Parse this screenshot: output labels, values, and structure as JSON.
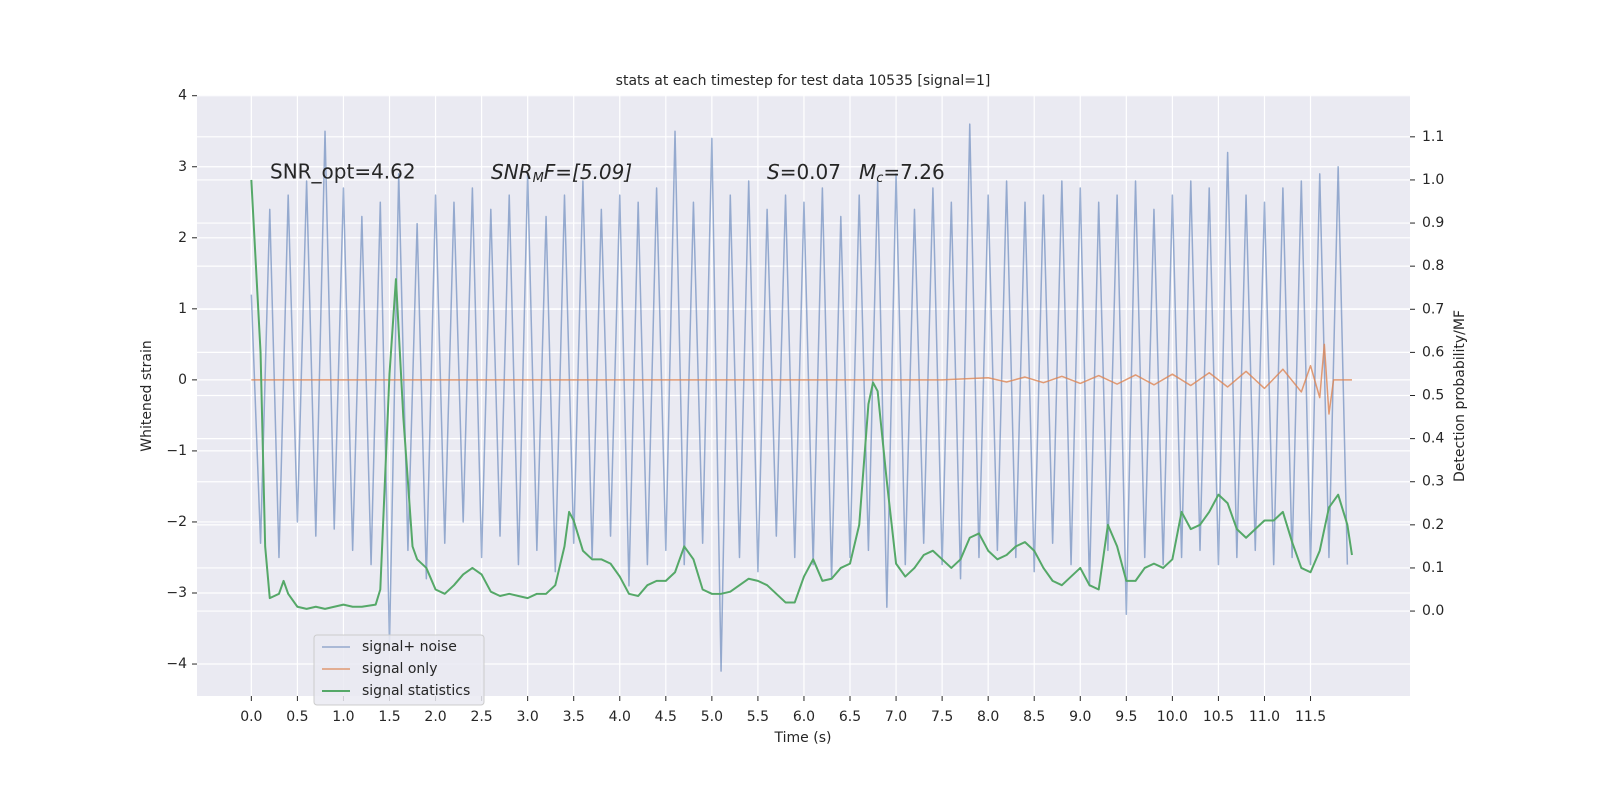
{
  "chart_data": {
    "type": "line",
    "title": "stats at each timestep for test data 10535 [signal=1]",
    "xlabel": "Time (s)",
    "ylabel": "Whitened strain",
    "y2label": "Detection probability/MF",
    "annotations": {
      "snr_opt": "SNR_opt=4.62",
      "snr_mf": [
        "SNR",
        "M",
        "F=[5.09]"
      ],
      "s": [
        "S",
        "=0.07"
      ],
      "mc": [
        "M",
        "c",
        "=7.26"
      ]
    },
    "xlim": [
      -0.59,
      12.58
    ],
    "ylim": [
      -4.45,
      4.01
    ],
    "y2lim": [
      -0.197,
      1.197
    ],
    "xticks": [
      {
        "value": 0,
        "label": "0.0"
      },
      0.5,
      {
        "value": 1,
        "label": "1.0"
      },
      1.5,
      {
        "value": 2,
        "label": "2.0"
      },
      2.5,
      {
        "value": 3,
        "label": "3.0"
      },
      3.5,
      {
        "value": 4,
        "label": "4.0"
      },
      4.5,
      {
        "value": 5,
        "label": "5.0"
      },
      5.5,
      {
        "value": 6,
        "label": "6.0"
      },
      6.5,
      {
        "value": 7,
        "label": "7.0"
      },
      7.5,
      {
        "value": 8,
        "label": "8.0"
      },
      8.5,
      {
        "value": 9,
        "label": "9.0"
      },
      9.5,
      {
        "value": 10,
        "label": "10.0"
      },
      10.5,
      {
        "value": 11,
        "label": "11.0"
      },
      11.5
    ],
    "yticks": [
      {
        "value": -4,
        "label": "−4"
      },
      {
        "value": -3,
        "label": "−3"
      },
      {
        "value": -2,
        "label": "−2"
      },
      {
        "value": -1,
        "label": "−1"
      },
      0,
      1,
      2,
      3,
      4
    ],
    "y2ticks": [
      {
        "value": 0,
        "label": "0.0"
      },
      0.1,
      0.2,
      0.3,
      0.4,
      0.5,
      0.6,
      0.7,
      0.8,
      0.9,
      {
        "value": 1,
        "label": "1.0"
      },
      1.1
    ],
    "grid": true,
    "legend": "lower left",
    "series": [
      {
        "name": "signal+ noise",
        "color": "#4c72b0",
        "opacity": 0.55,
        "x": [
          0,
          0.1,
          0.2,
          0.3,
          0.4,
          0.5,
          0.6,
          0.7,
          0.8,
          0.9,
          1,
          1.1,
          1.2,
          1.3,
          1.4,
          1.5,
          1.6,
          1.7,
          1.8,
          1.9,
          2,
          2.1,
          2.2,
          2.3,
          2.4,
          2.5,
          2.6,
          2.7,
          2.8,
          2.9,
          3,
          3.1,
          3.2,
          3.3,
          3.4,
          3.5,
          3.6,
          3.7,
          3.8,
          3.9,
          4,
          4.1,
          4.2,
          4.3,
          4.4,
          4.5,
          4.6,
          4.7,
          4.8,
          4.9,
          5,
          5.1,
          5.2,
          5.3,
          5.4,
          5.5,
          5.6,
          5.7,
          5.8,
          5.9,
          6,
          6.1,
          6.2,
          6.3,
          6.4,
          6.5,
          6.6,
          6.7,
          6.8,
          6.9,
          7,
          7.1,
          7.2,
          7.3,
          7.4,
          7.5,
          7.6,
          7.7,
          7.8,
          7.9,
          8,
          8.1,
          8.2,
          8.3,
          8.4,
          8.5,
          8.6,
          8.7,
          8.8,
          8.9,
          9,
          9.1,
          9.2,
          9.3,
          9.4,
          9.5,
          9.6,
          9.7,
          9.8,
          9.9,
          10,
          10.1,
          10.2,
          10.3,
          10.4,
          10.5,
          10.6,
          10.7,
          10.8,
          10.9,
          11,
          11.1,
          11.2,
          11.3,
          11.4,
          11.5,
          11.6,
          11.7,
          11.8,
          11.9
        ],
        "values": [
          1.2,
          -2.3,
          2.4,
          -2.5,
          2.6,
          -2.0,
          2.8,
          -2.2,
          3.5,
          -2.1,
          2.7,
          -2.4,
          2.3,
          -2.6,
          2.5,
          -3.7,
          2.9,
          -2.4,
          2.2,
          -2.8,
          2.6,
          -2.3,
          2.5,
          -2.0,
          2.7,
          -2.5,
          2.4,
          -2.2,
          2.6,
          -2.6,
          2.9,
          -2.4,
          2.3,
          -2.7,
          2.6,
          -2.3,
          2.8,
          -2.5,
          2.4,
          -2.2,
          2.6,
          -2.9,
          2.5,
          -2.6,
          2.7,
          -2.4,
          3.5,
          -2.6,
          2.5,
          -2.3,
          3.4,
          -4.1,
          2.6,
          -2.5,
          2.8,
          -2.7,
          2.4,
          -2.2,
          2.6,
          -2.5,
          2.5,
          -2.6,
          2.7,
          -2.8,
          2.3,
          -2.5,
          2.6,
          -2.4,
          2.8,
          -3.2,
          2.9,
          -2.6,
          2.4,
          -2.3,
          2.7,
          -2.6,
          2.5,
          -2.8,
          3.6,
          -2.5,
          2.6,
          -2.4,
          2.8,
          -2.5,
          2.5,
          -2.7,
          2.6,
          -2.3,
          2.8,
          -2.6,
          2.7,
          -2.9,
          2.5,
          -2.4,
          2.6,
          -3.3,
          2.8,
          -2.5,
          2.4,
          -2.6,
          2.6,
          -2.5,
          2.8,
          -2.4,
          2.7,
          -2.6,
          3.2,
          -2.5,
          2.6,
          -2.4,
          2.5,
          -2.6,
          2.7,
          -2.5,
          2.8,
          -2.6,
          2.9,
          -2.5,
          3.0,
          -2.6
        ]
      },
      {
        "name": "signal only",
        "color": "#dd8452",
        "opacity": 0.8,
        "x": [
          0,
          7.5,
          8,
          8.2,
          8.4,
          8.6,
          8.8,
          9,
          9.2,
          9.4,
          9.6,
          9.8,
          10,
          10.2,
          10.4,
          10.6,
          10.8,
          11,
          11.2,
          11.4,
          11.5,
          11.6,
          11.65,
          11.7,
          11.75,
          11.95
        ],
        "values": [
          0,
          0,
          0.03,
          -0.03,
          0.04,
          -0.04,
          0.05,
          -0.05,
          0.06,
          -0.06,
          0.07,
          -0.07,
          0.08,
          -0.08,
          0.1,
          -0.1,
          0.12,
          -0.12,
          0.15,
          -0.17,
          0.2,
          -0.25,
          0.5,
          -0.48,
          0,
          0
        ]
      },
      {
        "name": "signal statistics",
        "color": "#55a868",
        "opacity": 1,
        "axis": "y2",
        "x": [
          0,
          0.1,
          0.15,
          0.2,
          0.3,
          0.35,
          0.4,
          0.5,
          0.6,
          0.7,
          0.8,
          0.9,
          1,
          1.1,
          1.2,
          1.35,
          1.4,
          1.5,
          1.57,
          1.65,
          1.75,
          1.8,
          1.9,
          2,
          2.1,
          2.2,
          2.3,
          2.4,
          2.5,
          2.6,
          2.7,
          2.8,
          2.9,
          3,
          3.1,
          3.2,
          3.3,
          3.4,
          3.45,
          3.5,
          3.6,
          3.7,
          3.8,
          3.9,
          4,
          4.1,
          4.2,
          4.3,
          4.4,
          4.5,
          4.6,
          4.7,
          4.8,
          4.9,
          5,
          5.1,
          5.2,
          5.3,
          5.4,
          5.5,
          5.6,
          5.7,
          5.8,
          5.9,
          6,
          6.1,
          6.2,
          6.3,
          6.4,
          6.5,
          6.6,
          6.7,
          6.75,
          6.8,
          6.9,
          7,
          7.1,
          7.2,
          7.3,
          7.4,
          7.5,
          7.6,
          7.7,
          7.8,
          7.9,
          8,
          8.1,
          8.2,
          8.3,
          8.4,
          8.5,
          8.6,
          8.7,
          8.8,
          8.9,
          9,
          9.1,
          9.2,
          9.3,
          9.4,
          9.5,
          9.6,
          9.7,
          9.8,
          9.9,
          10,
          10.1,
          10.2,
          10.3,
          10.4,
          10.5,
          10.6,
          10.7,
          10.8,
          10.9,
          11,
          11.1,
          11.2,
          11.3,
          11.4,
          11.5,
          11.6,
          11.7,
          11.8,
          11.9,
          11.95
        ],
        "values": [
          1.0,
          0.6,
          0.15,
          0.03,
          0.04,
          0.07,
          0.04,
          0.01,
          0.005,
          0.01,
          0.005,
          0.01,
          0.015,
          0.01,
          0.01,
          0.015,
          0.05,
          0.55,
          0.77,
          0.45,
          0.15,
          0.12,
          0.1,
          0.05,
          0.04,
          0.06,
          0.085,
          0.1,
          0.085,
          0.045,
          0.035,
          0.04,
          0.035,
          0.03,
          0.04,
          0.04,
          0.06,
          0.15,
          0.23,
          0.21,
          0.14,
          0.12,
          0.12,
          0.11,
          0.08,
          0.04,
          0.035,
          0.06,
          0.07,
          0.07,
          0.09,
          0.15,
          0.12,
          0.05,
          0.04,
          0.04,
          0.045,
          0.06,
          0.075,
          0.07,
          0.06,
          0.04,
          0.02,
          0.02,
          0.08,
          0.12,
          0.07,
          0.075,
          0.1,
          0.11,
          0.2,
          0.48,
          0.53,
          0.51,
          0.3,
          0.11,
          0.08,
          0.1,
          0.13,
          0.14,
          0.12,
          0.1,
          0.12,
          0.17,
          0.18,
          0.14,
          0.12,
          0.13,
          0.15,
          0.16,
          0.14,
          0.1,
          0.07,
          0.06,
          0.08,
          0.1,
          0.06,
          0.05,
          0.2,
          0.15,
          0.07,
          0.07,
          0.1,
          0.11,
          0.1,
          0.12,
          0.23,
          0.19,
          0.2,
          0.23,
          0.27,
          0.25,
          0.19,
          0.17,
          0.19,
          0.21,
          0.21,
          0.23,
          0.16,
          0.1,
          0.09,
          0.14,
          0.24,
          0.27,
          0.2,
          0.13
        ]
      }
    ]
  }
}
